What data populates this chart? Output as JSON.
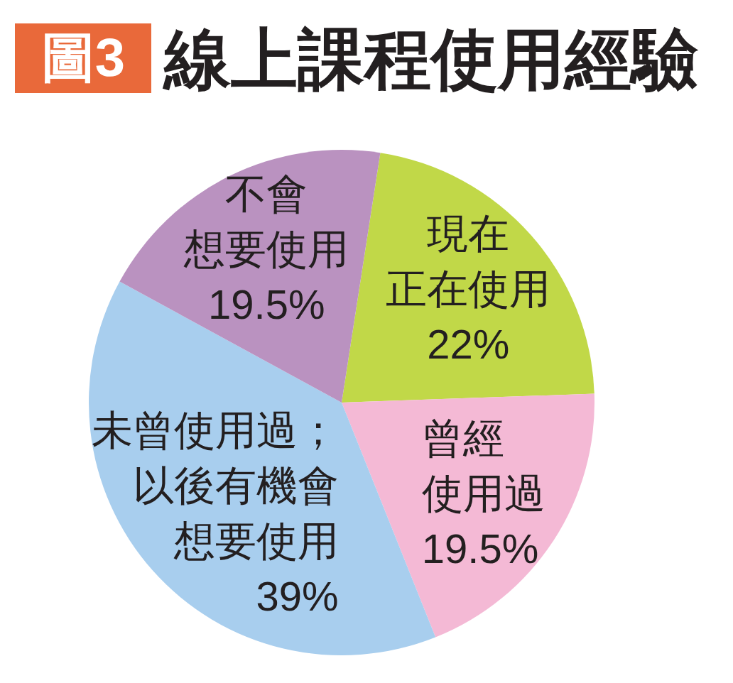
{
  "chart_data": {
    "type": "pie",
    "title": "線上課程使用經驗",
    "annotations": [
      "圖3"
    ],
    "categories": [
      "現在正在使用",
      "曾經使用過",
      "未曾使用過；以後有機會想要使用",
      "不會想要使用"
    ],
    "values": [
      22,
      19.5,
      39,
      19.5
    ],
    "value_labels": [
      "22%",
      "19.5%",
      "39%",
      "19.5%"
    ],
    "colors": [
      "#c1d848",
      "#f4b9d5",
      "#a8ceee",
      "#ba92c0"
    ]
  }
}
